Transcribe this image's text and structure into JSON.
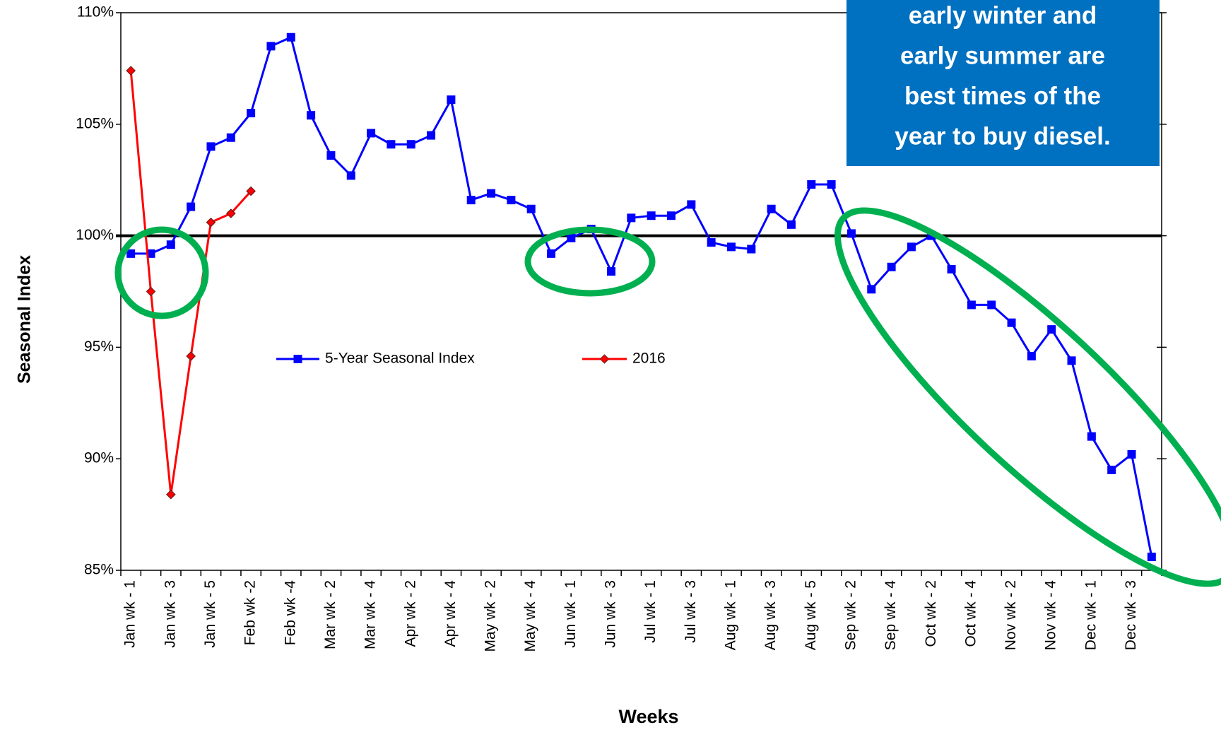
{
  "chart_data": {
    "type": "line",
    "categories": [
      "Jan wk - 1",
      null,
      "Jan wk - 3",
      null,
      "Jan wk - 5",
      null,
      "Feb wk -2",
      null,
      "Feb wk -4",
      null,
      "Mar wk - 2",
      null,
      "Mar wk - 4",
      null,
      "Apr wk - 2",
      null,
      "Apr wk - 4",
      null,
      "May wk - 2",
      null,
      "May wk - 4",
      null,
      "Jun wk - 1",
      null,
      "Jun wk - 3",
      null,
      "Jul wk - 1",
      null,
      "Jul wk - 3",
      null,
      "Aug wk - 1",
      null,
      "Aug wk - 3",
      null,
      "Aug wk - 5",
      null,
      "Sep wk - 2",
      null,
      "Sep wk - 4",
      null,
      "Oct wk - 2",
      null,
      "Oct wk - 4",
      null,
      "Nov wk - 2",
      null,
      "Nov wk - 4",
      null,
      "Dec wk - 1",
      null,
      "Dec wk - 3",
      null
    ],
    "series": [
      {
        "name": "5-Year Seasonal Index",
        "color": "#0000ff",
        "marker": "square",
        "values": [
          99.2,
          99.2,
          99.6,
          101.3,
          104.0,
          104.4,
          105.5,
          108.5,
          108.9,
          105.4,
          103.6,
          102.7,
          104.6,
          104.1,
          104.1,
          104.5,
          106.1,
          101.6,
          101.9,
          101.6,
          101.2,
          99.2,
          99.9,
          100.3,
          98.4,
          100.8,
          100.9,
          100.9,
          101.4,
          99.7,
          99.5,
          99.4,
          101.2,
          100.5,
          102.3,
          102.3,
          100.1,
          97.6,
          98.6,
          99.5,
          100.0,
          98.5,
          96.9,
          96.9,
          96.1,
          94.6,
          95.8,
          94.4,
          91.0,
          89.5,
          90.2,
          85.6
        ]
      },
      {
        "name": "2016",
        "color": "#ff0000",
        "marker": "diamond",
        "values": [
          107.4,
          97.5,
          88.4,
          94.6,
          100.6,
          101.0,
          102.0,
          null,
          null,
          null,
          null,
          null,
          null,
          null,
          null,
          null,
          null,
          null,
          null,
          null,
          null,
          null,
          null,
          null,
          null,
          null,
          null,
          null,
          null,
          null,
          null,
          null,
          null,
          null,
          null,
          null,
          null,
          null,
          null,
          null,
          null,
          null,
          null,
          null,
          null,
          null,
          null,
          null,
          null,
          null,
          null,
          null
        ]
      }
    ],
    "ylim": [
      85,
      110
    ],
    "yticks": [
      {
        "value": 85,
        "label": "85%"
      },
      {
        "value": 90,
        "label": "90%"
      },
      {
        "value": 95,
        "label": "95%"
      },
      {
        "value": 100,
        "label": "100%"
      },
      {
        "value": 105,
        "label": "105%"
      },
      {
        "value": 110,
        "label": "110%"
      }
    ],
    "reference_line": 100,
    "ylabel": "Seasonal Index",
    "xlabel": "Weeks",
    "annotation": [
      "early winter and",
      "early summer are",
      "best times of the",
      "year to buy diesel."
    ]
  }
}
